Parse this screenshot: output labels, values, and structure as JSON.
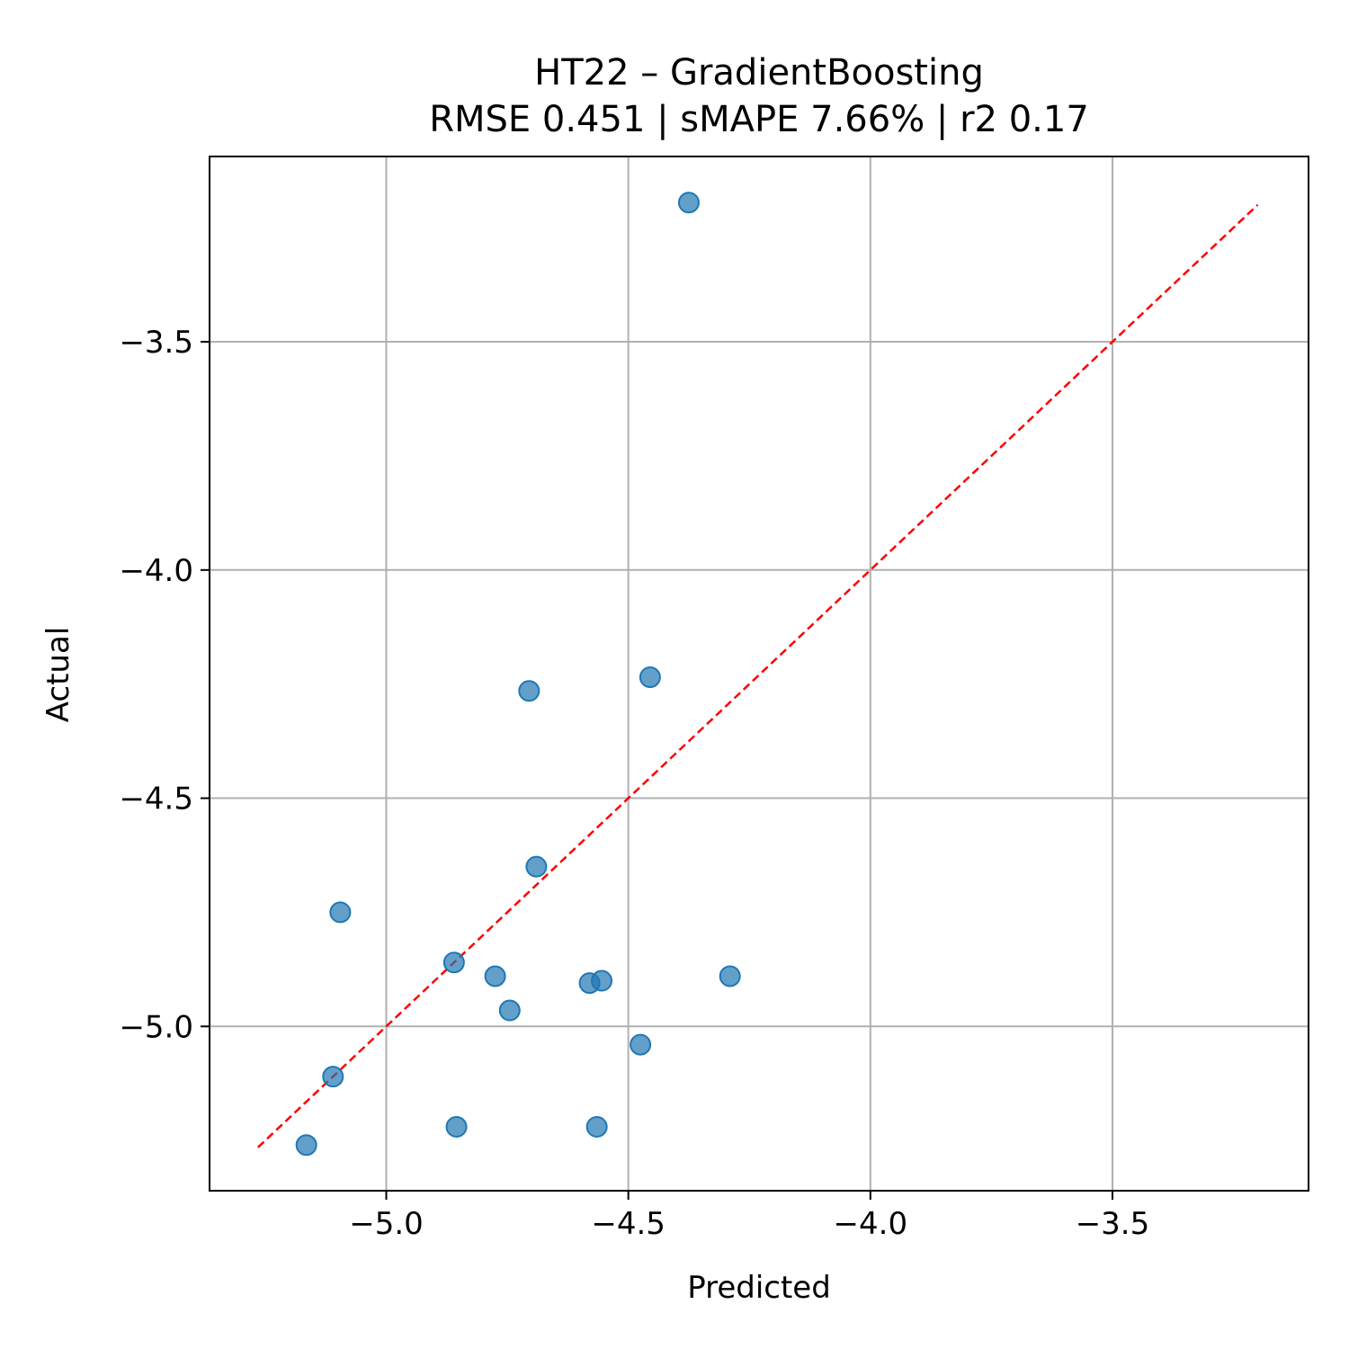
{
  "chart_data": {
    "type": "scatter",
    "title": "HT22 – GradientBoosting",
    "subtitle": "RMSE 0.451 | sMAPE 7.66%  | r2 0.17",
    "xlabel": "Predicted",
    "ylabel": "Actual",
    "xlim": [
      -5.365,
      -3.095
    ],
    "ylim": [
      -5.36,
      -3.094
    ],
    "xticks": [
      -5.0,
      -4.5,
      -4.0,
      -3.5
    ],
    "xtick_labels": [
      "−5.0",
      "−4.5",
      "−4.0",
      "−3.5"
    ],
    "yticks": [
      -5.0,
      -4.5,
      -4.0,
      -3.5
    ],
    "ytick_labels": [
      "−5.0",
      "−4.5",
      "−4.0",
      "−3.5"
    ],
    "grid": true,
    "point_color": "#1f77b4",
    "reference_line": {
      "from": [
        -5.265,
        -5.265
      ],
      "to": [
        -3.2,
        -3.2
      ],
      "color": "#ff0000",
      "style": "dashed"
    },
    "points": [
      {
        "x": -4.375,
        "y": -3.195
      },
      {
        "x": -4.705,
        "y": -4.265
      },
      {
        "x": -4.455,
        "y": -4.235
      },
      {
        "x": -4.69,
        "y": -4.65
      },
      {
        "x": -5.095,
        "y": -4.75
      },
      {
        "x": -4.86,
        "y": -4.86
      },
      {
        "x": -4.775,
        "y": -4.89
      },
      {
        "x": -4.58,
        "y": -4.905
      },
      {
        "x": -4.555,
        "y": -4.9
      },
      {
        "x": -4.29,
        "y": -4.89
      },
      {
        "x": -4.745,
        "y": -4.965
      },
      {
        "x": -4.475,
        "y": -5.04
      },
      {
        "x": -5.11,
        "y": -5.11
      },
      {
        "x": -4.855,
        "y": -5.22
      },
      {
        "x": -4.565,
        "y": -5.22
      },
      {
        "x": -5.165,
        "y": -5.26
      }
    ]
  }
}
